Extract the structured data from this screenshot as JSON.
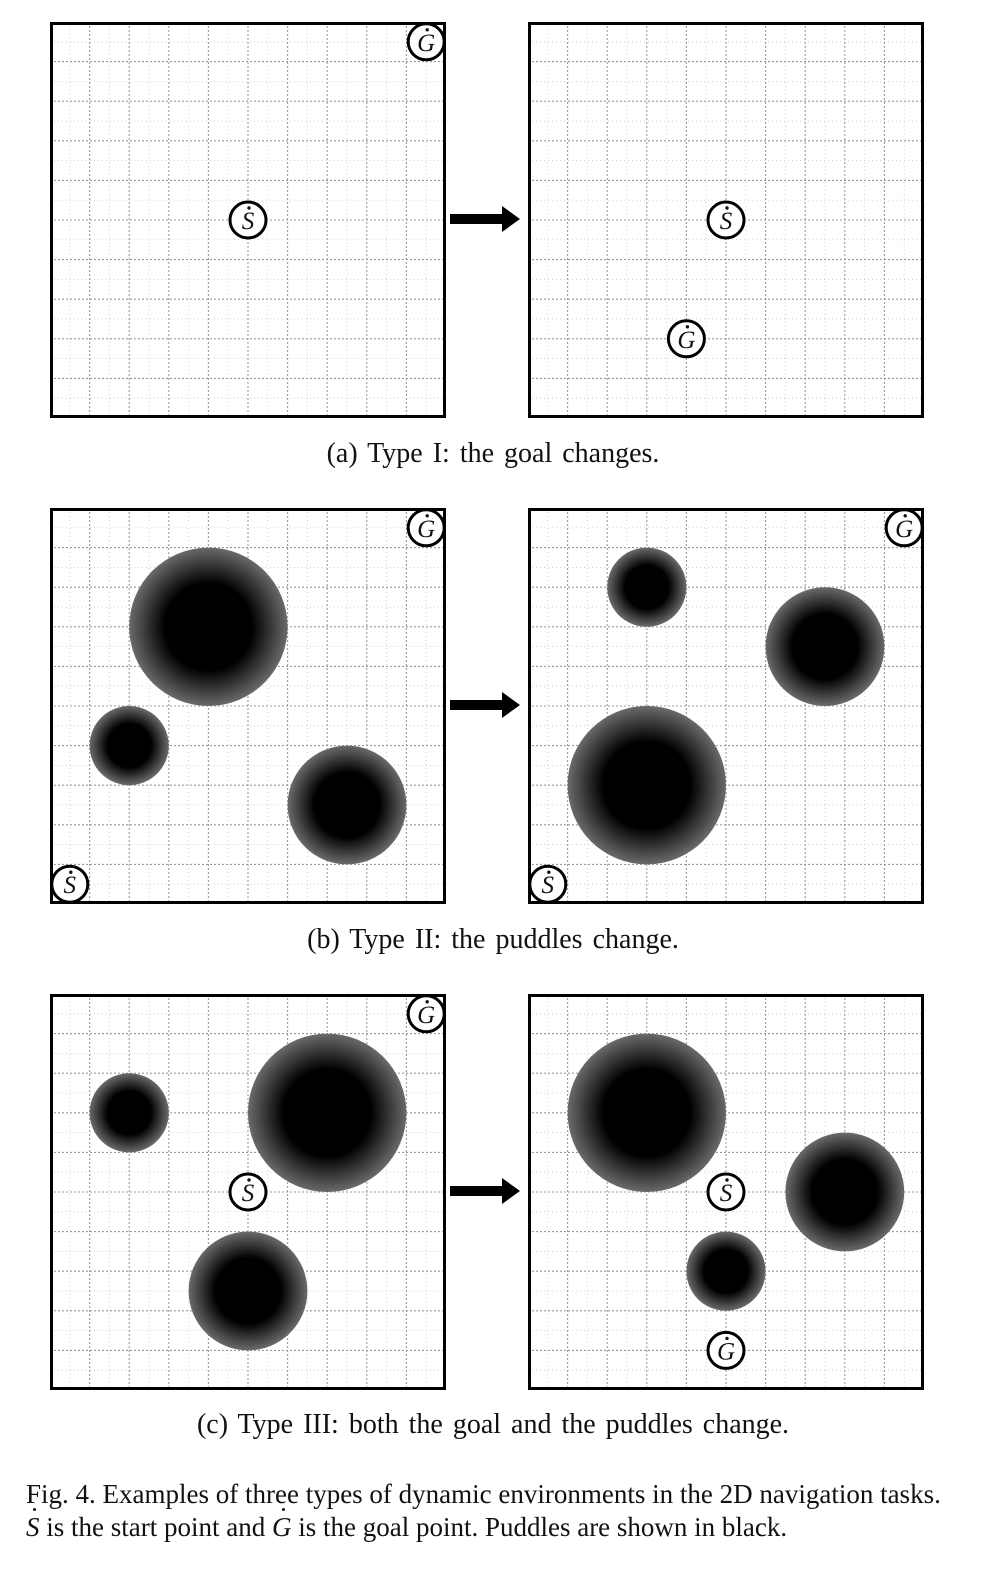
{
  "panels": [
    {
      "id": "a",
      "caption": "(a) Type I: the goal changes.",
      "before": {
        "markers": [
          {
            "kind": "start",
            "label": "S",
            "col": 5,
            "row": 5
          },
          {
            "kind": "goal",
            "label": "G",
            "col": 9.5,
            "row": 0.5
          }
        ],
        "puddles": []
      },
      "after": {
        "markers": [
          {
            "kind": "start",
            "label": "S",
            "col": 5,
            "row": 5
          },
          {
            "kind": "goal",
            "label": "G",
            "col": 4,
            "row": 8
          }
        ],
        "puddles": []
      }
    },
    {
      "id": "b",
      "caption": "(b) Type II: the puddles change.",
      "before": {
        "markers": [
          {
            "kind": "start",
            "label": "S",
            "col": 0.5,
            "row": 9.5
          },
          {
            "kind": "goal",
            "label": "G",
            "col": 9.5,
            "row": 0.5
          }
        ],
        "puddles": [
          {
            "col": 4,
            "row": 3,
            "r": 2
          },
          {
            "col": 2,
            "row": 6,
            "r": 1
          },
          {
            "col": 7.5,
            "row": 7.5,
            "r": 1.5
          }
        ]
      },
      "after": {
        "markers": [
          {
            "kind": "start",
            "label": "S",
            "col": 0.5,
            "row": 9.5
          },
          {
            "kind": "goal",
            "label": "G",
            "col": 9.5,
            "row": 0.5
          }
        ],
        "puddles": [
          {
            "col": 3,
            "row": 2,
            "r": 1
          },
          {
            "col": 7.5,
            "row": 3.5,
            "r": 1.5
          },
          {
            "col": 3,
            "row": 7,
            "r": 2
          }
        ]
      }
    },
    {
      "id": "c",
      "caption": "(c) Type III: both the goal and the puddles change.",
      "before": {
        "markers": [
          {
            "kind": "start",
            "label": "S",
            "col": 5,
            "row": 5
          },
          {
            "kind": "goal",
            "label": "G",
            "col": 9.5,
            "row": 0.5
          }
        ],
        "puddles": [
          {
            "col": 2,
            "row": 3,
            "r": 1
          },
          {
            "col": 7,
            "row": 3,
            "r": 2
          },
          {
            "col": 5,
            "row": 7.5,
            "r": 1.5
          }
        ]
      },
      "after": {
        "markers": [
          {
            "kind": "start",
            "label": "S",
            "col": 5,
            "row": 5
          },
          {
            "kind": "goal",
            "label": "G",
            "col": 5,
            "row": 9
          }
        ],
        "puddles": [
          {
            "col": 3,
            "row": 3,
            "r": 2
          },
          {
            "col": 8,
            "row": 5,
            "r": 1.5
          },
          {
            "col": 5,
            "row": 7,
            "r": 1
          }
        ]
      }
    }
  ],
  "figure_caption": {
    "lead": "Fig. 4.  Examples of three types of dynamic environments in the 2D navigation tasks.",
    "start_symbol": "S",
    "start_text": "is the start point and",
    "goal_symbol": "G",
    "goal_text": "is the goal point. Puddles are shown in black."
  },
  "colors": {
    "puddle_core": "#000000",
    "puddle_edge": "#6a6a6a",
    "grid": "#9a9a9a",
    "frame": "#000000"
  }
}
